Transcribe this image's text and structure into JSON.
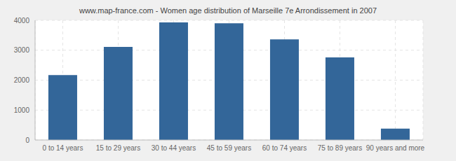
{
  "chart_data": {
    "type": "bar",
    "title": "www.map-france.com - Women age distribution of Marseille 7e Arrondissement in 2007",
    "categories": [
      "0 to 14 years",
      "15 to 29 years",
      "30 to 44 years",
      "45 to 59 years",
      "60 to 74 years",
      "75 to 89 years",
      "90 years and more"
    ],
    "values": [
      2170,
      3110,
      3930,
      3900,
      3360,
      2760,
      380
    ],
    "color": "#336699",
    "ylim": [
      0,
      4000
    ],
    "yticks": [
      0,
      1000,
      2000,
      3000,
      4000
    ],
    "grid": true
  }
}
